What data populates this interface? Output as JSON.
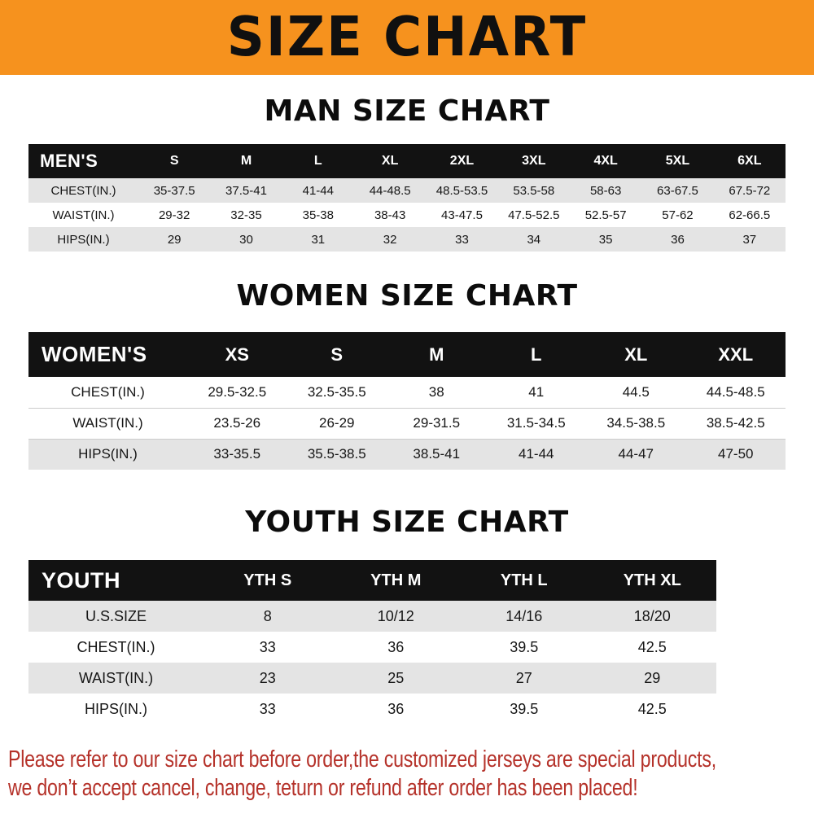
{
  "banner": {
    "title": "SIZE CHART",
    "bg_color": "#F6921E"
  },
  "sections": [
    {
      "id": "men",
      "heading": "MAN SIZE CHART",
      "corner_label": "MEN'S",
      "columns": [
        "S",
        "M",
        "L",
        "XL",
        "2XL",
        "3XL",
        "4XL",
        "5XL",
        "6XL"
      ],
      "rows": [
        {
          "label": "CHEST(IN.)",
          "shaded": true,
          "values": [
            "35-37.5",
            "37.5-41",
            "41-44",
            "44-48.5",
            "48.5-53.5",
            "53.5-58",
            "58-63",
            "63-67.5",
            "67.5-72"
          ]
        },
        {
          "label": "WAIST(IN.)",
          "shaded": false,
          "values": [
            "29-32",
            "32-35",
            "35-38",
            "38-43",
            "43-47.5",
            "47.5-52.5",
            "52.5-57",
            "57-62",
            "62-66.5"
          ]
        },
        {
          "label": "HIPS(IN.)",
          "shaded": true,
          "values": [
            "29",
            "30",
            "31",
            "32",
            "33",
            "34",
            "35",
            "36",
            "37"
          ]
        }
      ]
    },
    {
      "id": "women",
      "heading": "WOMEN SIZE CHART",
      "corner_label": "WOMEN'S",
      "columns": [
        "XS",
        "S",
        "M",
        "L",
        "XL",
        "XXL"
      ],
      "rows": [
        {
          "label": "CHEST(IN.)",
          "shaded": false,
          "values": [
            "29.5-32.5",
            "32.5-35.5",
            "38",
            "41",
            "44.5",
            "44.5-48.5"
          ]
        },
        {
          "label": "WAIST(IN.)",
          "shaded": false,
          "values": [
            "23.5-26",
            "26-29",
            "29-31.5",
            "31.5-34.5",
            "34.5-38.5",
            "38.5-42.5"
          ]
        },
        {
          "label": "HIPS(IN.)",
          "shaded": true,
          "values": [
            "33-35.5",
            "35.5-38.5",
            "38.5-41",
            "41-44",
            "44-47",
            "47-50"
          ]
        }
      ]
    },
    {
      "id": "youth",
      "heading": "YOUTH SIZE CHART",
      "corner_label": "YOUTH",
      "columns": [
        "YTH S",
        "YTH M",
        "YTH L",
        "YTH XL"
      ],
      "rows": [
        {
          "label": "U.S.SIZE",
          "shaded": true,
          "values": [
            "8",
            "10/12",
            "14/16",
            "18/20"
          ]
        },
        {
          "label": "CHEST(IN.)",
          "shaded": false,
          "values": [
            "33",
            "36",
            "39.5",
            "42.5"
          ]
        },
        {
          "label": "WAIST(IN.)",
          "shaded": true,
          "values": [
            "23",
            "25",
            "27",
            "29"
          ]
        },
        {
          "label": "HIPS(IN.)",
          "shaded": false,
          "values": [
            "33",
            "36",
            "39.5",
            "42.5"
          ]
        }
      ]
    }
  ],
  "footer": {
    "line1": "Please refer to our size chart before order,the customized jerseys are special products,",
    "line2": "we don’t accept cancel, change, teturn or refund after order has been placed!",
    "text_color": "#b5322a"
  },
  "colors": {
    "banner_bg": "#F6921E",
    "table_header_bg": "#121212",
    "shaded_row_bg": "#e4e4e4"
  }
}
